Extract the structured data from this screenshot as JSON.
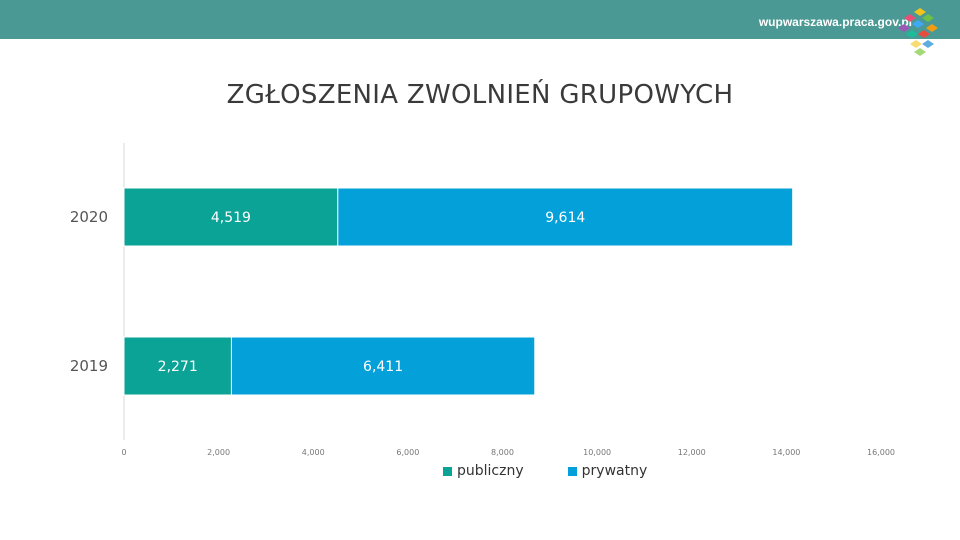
{
  "header": {
    "site_url": "wupwarszawa.praca.gov.pl",
    "background_color": "#4a9994",
    "logo_icon": "colorful-cubes-logo-icon"
  },
  "chart_data": {
    "type": "bar",
    "orientation": "horizontal",
    "stacked": true,
    "title": "ZGŁOSZENIA ZWOLNIEŃ GRUPOWYCH",
    "xlabel": "",
    "ylabel": "",
    "categories": [
      "2020",
      "2019"
    ],
    "series": [
      {
        "name": "publiczny",
        "values": [
          4519,
          2271
        ],
        "labels": [
          "4,519",
          "2,271"
        ],
        "color": "#0aa396"
      },
      {
        "name": "prywatny",
        "values": [
          9614,
          6411
        ],
        "labels": [
          "9,614",
          "6,411"
        ],
        "color": "#04a0d9"
      }
    ],
    "xlim": [
      0,
      16000
    ],
    "xticks": [
      0,
      2000,
      4000,
      6000,
      8000,
      10000,
      12000,
      14000,
      16000
    ],
    "xtick_labels": [
      "0",
      "2,000",
      "4,000",
      "6,000",
      "8,000",
      "10,000",
      "12,000",
      "14,000",
      "16,000"
    ],
    "grid": false,
    "legend_position": "bottom"
  }
}
